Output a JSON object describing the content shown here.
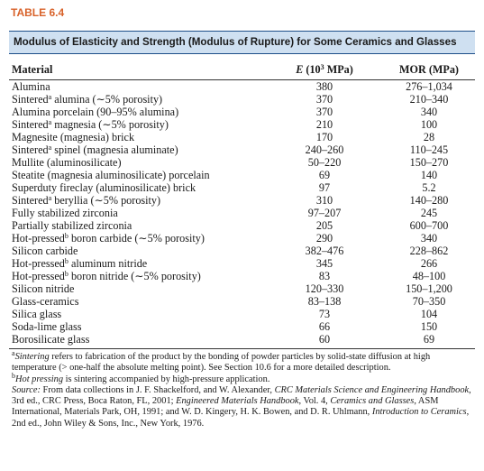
{
  "table_label": "TABLE 6.4",
  "title": "Modulus of Elasticity and Strength (Modulus of Rupture) for Some Ceramics and Glasses",
  "columns": {
    "material": "Material",
    "e": {
      "symbol": "E",
      "base": " (10",
      "exp": "3",
      "unit": " MPa)"
    },
    "mor": "MOR (MPa)"
  },
  "rows": [
    {
      "material": {
        "text": "Alumina"
      },
      "e": "380",
      "mor": "276–1,034"
    },
    {
      "material": {
        "text": "Sintered",
        "note": "a",
        "rest": " alumina (∼5% porosity)"
      },
      "e": "370",
      "mor": "210–340"
    },
    {
      "material": {
        "text": "Alumina porcelain (90–95% alumina)"
      },
      "e": "370",
      "mor": "340"
    },
    {
      "material": {
        "text": "Sintered",
        "note": "a",
        "rest": " magnesia (∼5% porosity)"
      },
      "e": "210",
      "mor": "100"
    },
    {
      "material": {
        "text": "Magnesite (magnesia) brick"
      },
      "e": "170",
      "mor": "28"
    },
    {
      "material": {
        "text": "Sintered",
        "note": "a",
        "rest": " spinel (magnesia aluminate)"
      },
      "e": "240–260",
      "mor": "110–245"
    },
    {
      "material": {
        "text": "Mullite (aluminosilicate)"
      },
      "e": "50–220",
      "mor": "150–270"
    },
    {
      "material": {
        "text": "Steatite (magnesia aluminosilicate) porcelain"
      },
      "e": "69",
      "mor": "140"
    },
    {
      "material": {
        "text": "Superduty fireclay (aluminosilicate) brick"
      },
      "e": "97",
      "mor": "5.2"
    },
    {
      "material": {
        "text": "Sintered",
        "note": "a",
        "rest": " beryllia (∼5% porosity)"
      },
      "e": "310",
      "mor": "140–280"
    },
    {
      "material": {
        "text": "Fully stabilized zirconia"
      },
      "e": "97–207",
      "mor": "245"
    },
    {
      "material": {
        "text": "Partially stabilized zirconia"
      },
      "e": "205",
      "mor": "600–700"
    },
    {
      "material": {
        "text": "Hot-pressed",
        "note": "b",
        "rest": " boron carbide (∼5% porosity)"
      },
      "e": "290",
      "mor": "340"
    },
    {
      "material": {
        "text": "Silicon carbide"
      },
      "e": "382–476",
      "mor": "228–862"
    },
    {
      "material": {
        "text": "Hot-pressed",
        "note": "b",
        "rest": " aluminum nitride"
      },
      "e": "345",
      "mor": "266"
    },
    {
      "material": {
        "text": "Hot-pressed",
        "note": "b",
        "rest": " boron nitride (∼5% porosity)"
      },
      "e": "83",
      "mor": "48–100"
    },
    {
      "material": {
        "text": "Silicon nitride"
      },
      "e": "120–330",
      "mor": "150–1,200"
    },
    {
      "material": {
        "text": "Glass-ceramics"
      },
      "e": "83–138",
      "mor": "70–350"
    },
    {
      "material": {
        "text": "Silica glass"
      },
      "e": "73",
      "mor": "104"
    },
    {
      "material": {
        "text": "Soda-lime glass"
      },
      "e": "66",
      "mor": "150"
    },
    {
      "material": {
        "text": "Borosilicate glass"
      },
      "e": "60",
      "mor": "69"
    }
  ],
  "footnotes": {
    "a": {
      "mark": "a",
      "term": "Sintering",
      "text": " refers to fabrication of the product by the bonding of powder particles by solid-state diffusion at high temperature (> one-half the absolute melting point). See Section 10.6 for a more detailed description."
    },
    "b": {
      "mark": "b",
      "term": "Hot pressing",
      "text": " is sintering accompanied by high-pressure application."
    },
    "source": [
      "Source:",
      " From data collections in J. F. Shackelford, and W. Alexander, ",
      "CRC Materials Science and Engineering Handbook",
      ", 3rd ed., CRC Press, Boca Raton, FL, 2001; ",
      "Engineered Materials Handbook",
      ", Vol. 4, ",
      "Ceramics and Glasses",
      ", ASM International, Materials Park, OH, 1991; and W. D. Kingery, H. K. Bowen, and D. R. Uhlmann, ",
      "Introduction to Ceramics",
      ", 2nd ed., John Wiley & Sons, Inc., New York, 1976."
    ]
  }
}
